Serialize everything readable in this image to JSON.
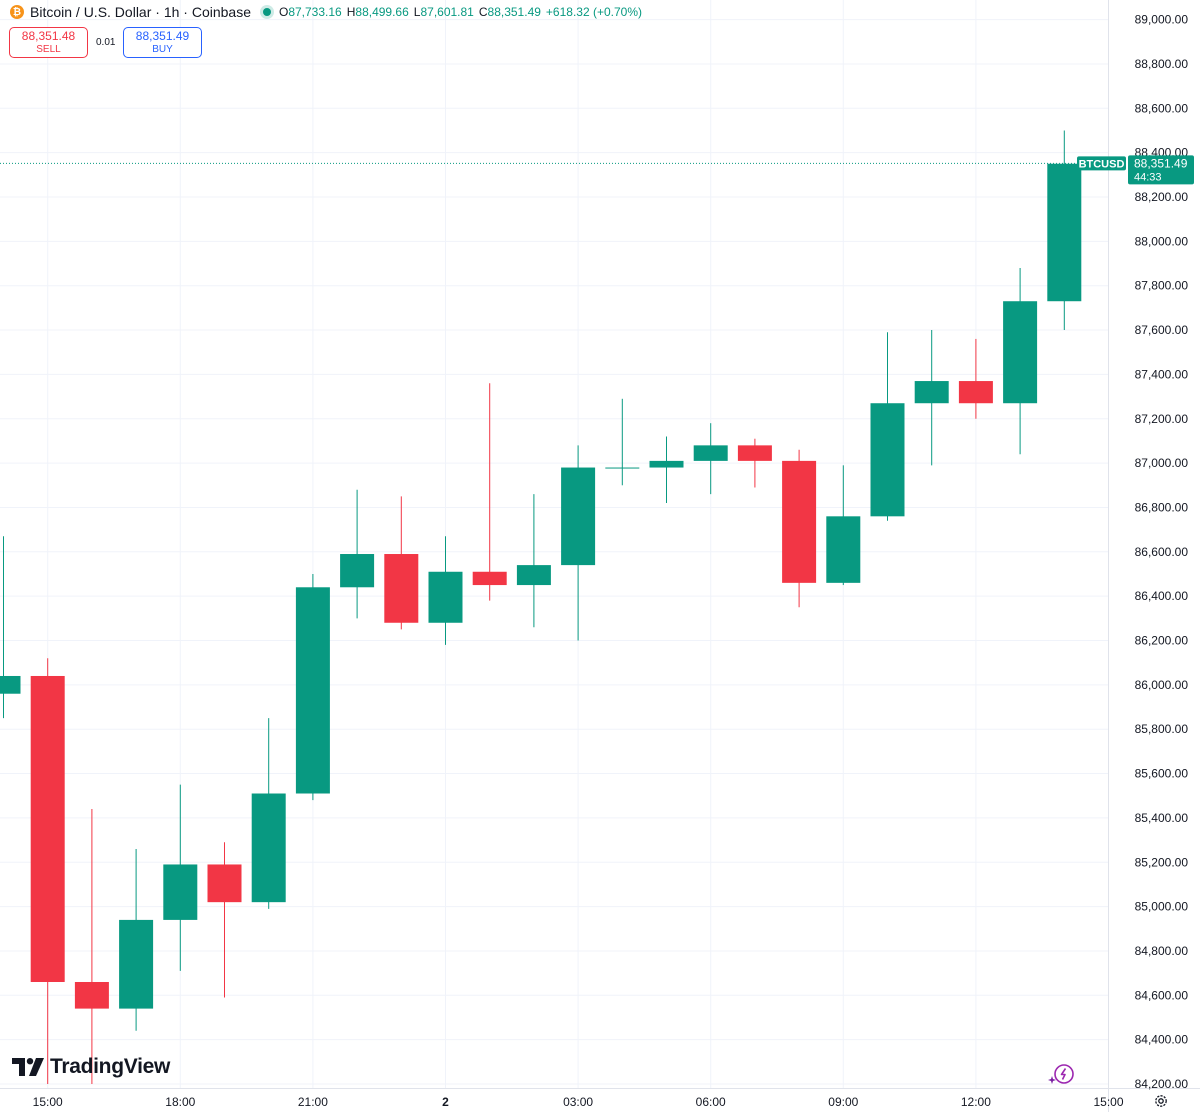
{
  "header": {
    "coin_icon": "bitcoin-icon",
    "coin_glyph": "₿",
    "title": "Bitcoin / U.S. Dollar · 1h · Coinbase",
    "ohlc": {
      "o_label": "O",
      "o_value": "87,733.16",
      "h_label": "H",
      "h_value": "88,499.66",
      "l_label": "L",
      "l_value": "87,601.81",
      "c_label": "C",
      "c_value": "88,351.49",
      "change": "+618.32 (+0.70%)"
    }
  },
  "trade": {
    "sell_price": "88,351.48",
    "sell_label": "SELL",
    "spread": "0.01",
    "buy_price": "88,351.49",
    "buy_label": "BUY"
  },
  "brand": {
    "name": "TradingView"
  },
  "colors": {
    "up": "#089981",
    "down": "#f23645",
    "grid": "#f0f3fa",
    "axis_text": "#131722"
  },
  "chart_data": {
    "type": "candlestick",
    "symbol_label": "BTCUSD",
    "last_price": 88351.49,
    "last_price_text": "88,351.49",
    "countdown": "44:33",
    "ylim": [
      84200,
      89000
    ],
    "y_ticks": [
      84200,
      84400,
      84600,
      84800,
      85000,
      85200,
      85400,
      85600,
      85800,
      86000,
      86200,
      86400,
      86600,
      86800,
      87000,
      87200,
      87400,
      87600,
      87800,
      88000,
      88200,
      88400,
      88600,
      88800,
      89000
    ],
    "y_tick_labels": [
      "84,200.00",
      "84,400.00",
      "84,600.00",
      "84,800.00",
      "85,000.00",
      "85,200.00",
      "85,400.00",
      "85,600.00",
      "85,800.00",
      "86,000.00",
      "86,200.00",
      "86,400.00",
      "86,600.00",
      "86,800.00",
      "87,000.00",
      "87,200.00",
      "87,400.00",
      "87,600.00",
      "87,800.00",
      "88,000.00",
      "88,200.00",
      "88,400.00",
      "88,600.00",
      "88,800.00",
      "89,000.00"
    ],
    "x_ticks": [
      {
        "bar": 1,
        "label": "15:00"
      },
      {
        "bar": 4,
        "label": "18:00"
      },
      {
        "bar": 7,
        "label": "21:00"
      },
      {
        "bar": 10,
        "label": "2"
      },
      {
        "bar": 13,
        "label": "03:00"
      },
      {
        "bar": 16,
        "label": "06:00"
      },
      {
        "bar": 19,
        "label": "09:00"
      },
      {
        "bar": 22,
        "label": "12:00"
      },
      {
        "bar": 25,
        "label": "15:00"
      }
    ],
    "candles": [
      {
        "o": 85960,
        "h": 86670,
        "l": 85850,
        "c": 86040
      },
      {
        "o": 86040,
        "h": 86120,
        "l": 84200,
        "c": 84660
      },
      {
        "o": 84660,
        "h": 85440,
        "l": 84200,
        "c": 84540
      },
      {
        "o": 84540,
        "h": 85260,
        "l": 84440,
        "c": 84940
      },
      {
        "o": 84940,
        "h": 85550,
        "l": 84710,
        "c": 85190
      },
      {
        "o": 85190,
        "h": 85290,
        "l": 84590,
        "c": 85020
      },
      {
        "o": 85020,
        "h": 85850,
        "l": 84990,
        "c": 85510
      },
      {
        "o": 85510,
        "h": 86500,
        "l": 85480,
        "c": 86440
      },
      {
        "o": 86440,
        "h": 86880,
        "l": 86300,
        "c": 86590
      },
      {
        "o": 86590,
        "h": 86850,
        "l": 86250,
        "c": 86280
      },
      {
        "o": 86280,
        "h": 86670,
        "l": 86180,
        "c": 86510
      },
      {
        "o": 86510,
        "h": 87360,
        "l": 86380,
        "c": 86450
      },
      {
        "o": 86450,
        "h": 86860,
        "l": 86260,
        "c": 86540
      },
      {
        "o": 86540,
        "h": 87080,
        "l": 86200,
        "c": 86980
      },
      {
        "o": 86980,
        "h": 87290,
        "l": 86900,
        "c": 86980
      },
      {
        "o": 86980,
        "h": 87120,
        "l": 86820,
        "c": 87010
      },
      {
        "o": 87010,
        "h": 87180,
        "l": 86860,
        "c": 87080
      },
      {
        "o": 87080,
        "h": 87110,
        "l": 86890,
        "c": 87010
      },
      {
        "o": 87010,
        "h": 87060,
        "l": 86350,
        "c": 86460
      },
      {
        "o": 86460,
        "h": 86990,
        "l": 86450,
        "c": 86760
      },
      {
        "o": 86760,
        "h": 87590,
        "l": 86740,
        "c": 87270
      },
      {
        "o": 87270,
        "h": 87600,
        "l": 86990,
        "c": 87370
      },
      {
        "o": 87370,
        "h": 87560,
        "l": 87200,
        "c": 87270
      },
      {
        "o": 87270,
        "h": 87880,
        "l": 87040,
        "c": 87730
      },
      {
        "o": 87730,
        "h": 88500,
        "l": 87600,
        "c": 88350
      }
    ]
  },
  "icons": {
    "settings": "gear-icon",
    "assistant": "sparkle-icon",
    "logo": "tradingview-logo-icon"
  }
}
